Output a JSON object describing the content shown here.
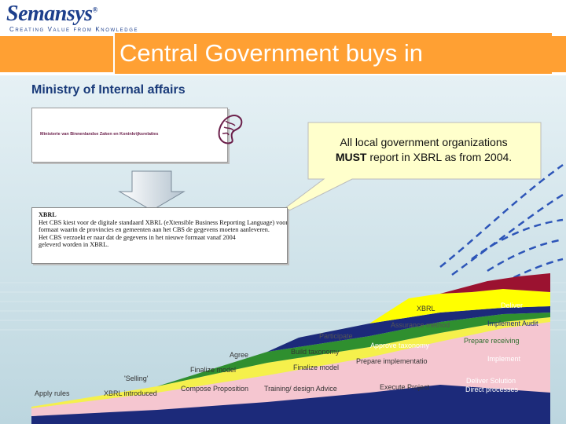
{
  "logo": {
    "name": "Semansys",
    "mark": "®",
    "tagline": "Creating Value from Knowledge"
  },
  "title": "Central Government buys in",
  "subtitle": "Ministry of Internal affairs",
  "ministry_header": "Ministerie van Binnenlandse Zaken en Koninkrijksrelaties",
  "callout": {
    "line1": "All local government organizations",
    "line2_bold": "MUST",
    "line2_rest": " report in XBRL as from 2004."
  },
  "excerpt": {
    "heading": "XBRL",
    "lines": [
      "Het CBS kiest voor de digitale standaard XBRL (eXtensible Business Reporting Language) voor het",
      "formaat waarin de provincies en gemeenten aan het CBS de gegevens moeten aanleveren.",
      "Het CBS verzoekt er naar dat de gegevens in het nieuwe formaat vanaf 2004",
      "geleverd worden in XBRL."
    ]
  },
  "labels": {
    "apply_rules": "Apply rules",
    "xbrl_introduced": "XBRL introduced",
    "selling": "'Selling'",
    "compose_proposition": "Compose Proposition",
    "finalize_model_1": "Finalize model",
    "agree": "Agree",
    "build_taxonomy": "Build taxonomy",
    "participate": "Participate",
    "finalize_model_2": "Finalize model",
    "training_design": "Training/ design Advice",
    "assurance_method": "Assurance method",
    "xbrl": "XBRL",
    "approve_taxonomy": "Approve taxonomy",
    "prepare_implementation": "Prepare implementatio",
    "execute_project": "Execute Project",
    "deliver": "Deliver",
    "implement_audit": "Implement Audit",
    "prepare_receiving": "Prepare receiving",
    "implement": "Implement",
    "deliver_solution": "Deliver Solution",
    "direct_processes": "Direct processes"
  },
  "colors": {
    "orange": "#ffa033",
    "navy": "#1d3f8c",
    "sky": "#c3dde6",
    "yellow": "#ffff00",
    "green": "#2f8f2f",
    "pink": "#f5c6d0",
    "darkblue": "#1c2a7a",
    "maroon": "#9b1230"
  }
}
